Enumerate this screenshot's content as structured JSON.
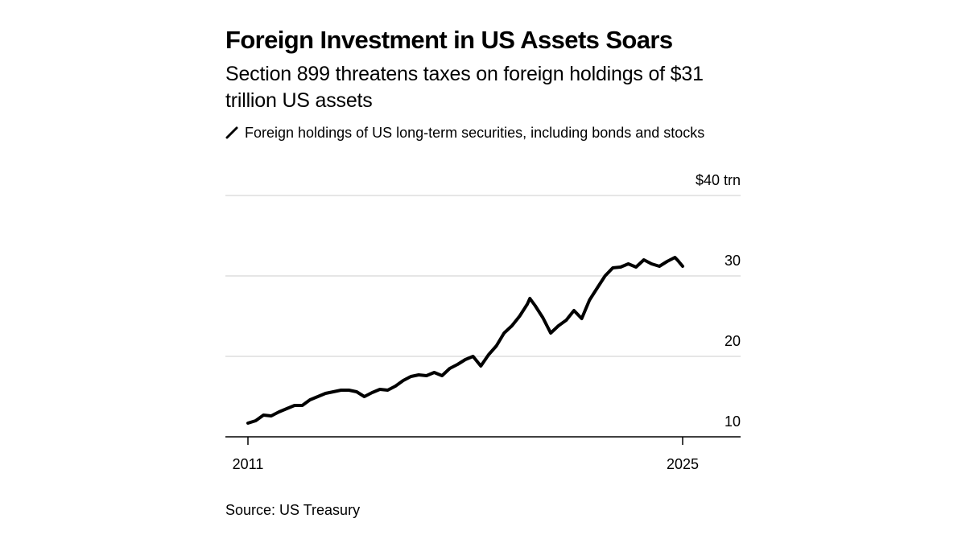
{
  "title": "Foreign Investment in US Assets Soars",
  "subtitle": "Section 899 threatens taxes on foreign holdings of $31 trillion US assets",
  "source": "Source: US Treasury",
  "colors": {
    "line": "#000000",
    "grid": "#cccccc",
    "axis": "#000000"
  },
  "chart_data": {
    "type": "line",
    "title": "Foreign Investment in US Assets Soars",
    "subtitle": "Section 899 threatens taxes on foreign holdings of $31 trillion US assets",
    "legend": "top-left",
    "grid": true,
    "xlim": [
      2011,
      2025
    ],
    "ylim": [
      8,
      40
    ],
    "y_ticks": [
      {
        "value": 40,
        "label": "$40 trn"
      },
      {
        "value": 30,
        "label": "30"
      },
      {
        "value": 20,
        "label": "20"
      },
      {
        "value": 10,
        "label": "10"
      }
    ],
    "x_ticks": [
      {
        "value": 2011,
        "label": "2011"
      },
      {
        "value": 2025,
        "label": "2025"
      }
    ],
    "series": [
      {
        "name": "Foreign holdings of US long-term securities, including bonds and stocks",
        "x": [
          2011.0,
          2011.25,
          2011.5,
          2011.75,
          2012.0,
          2012.25,
          2012.5,
          2012.75,
          2013.0,
          2013.25,
          2013.5,
          2013.75,
          2014.0,
          2014.25,
          2014.5,
          2014.75,
          2015.0,
          2015.25,
          2015.5,
          2015.75,
          2016.0,
          2016.25,
          2016.5,
          2016.75,
          2017.0,
          2017.25,
          2017.5,
          2017.75,
          2018.0,
          2018.25,
          2018.5,
          2018.75,
          2019.0,
          2019.25,
          2019.5,
          2019.75,
          2020.0,
          2020.08,
          2020.25,
          2020.5,
          2020.75,
          2021.0,
          2021.25,
          2021.5,
          2021.75,
          2022.0,
          2022.25,
          2022.5,
          2022.75,
          2023.0,
          2023.25,
          2023.5,
          2023.75,
          2024.0,
          2024.25,
          2024.5,
          2024.75,
          2024.85,
          2025.0
        ],
        "values": [
          11.7,
          12.0,
          12.7,
          12.6,
          13.1,
          13.5,
          13.9,
          13.9,
          14.6,
          15.0,
          15.4,
          15.6,
          15.8,
          15.8,
          15.6,
          15.0,
          15.5,
          15.9,
          15.8,
          16.3,
          17.0,
          17.5,
          17.7,
          17.6,
          18.0,
          17.6,
          18.5,
          19.0,
          19.6,
          20.0,
          18.8,
          20.2,
          21.3,
          22.9,
          23.8,
          25.0,
          26.5,
          27.2,
          26.3,
          24.8,
          22.9,
          23.8,
          24.5,
          25.7,
          24.7,
          27.0,
          28.5,
          30.0,
          31.0,
          31.1,
          31.5,
          31.1,
          32.0,
          31.5,
          31.2,
          31.8,
          32.3,
          31.9,
          31.2
        ]
      }
    ]
  }
}
